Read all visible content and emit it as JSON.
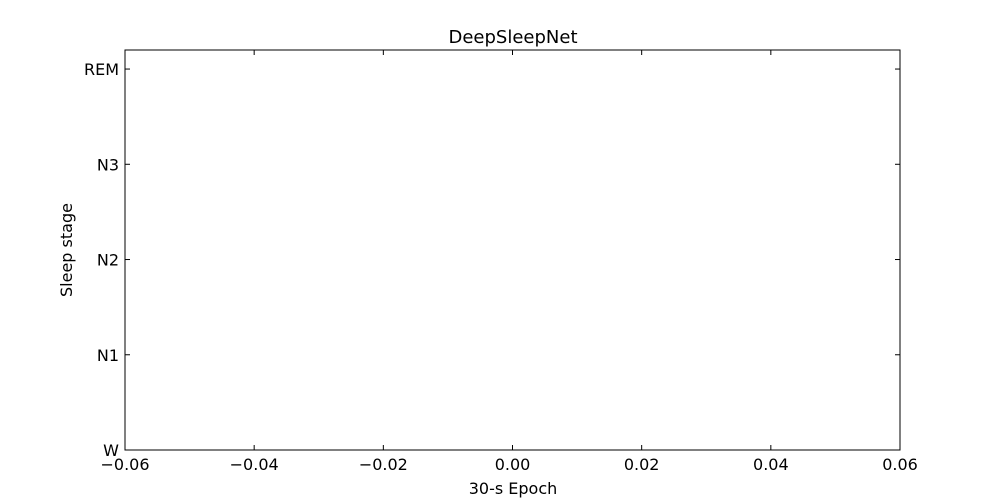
{
  "chart_data": {
    "type": "line",
    "title": "DeepSleepNet",
    "xlabel": "30-s Epoch",
    "ylabel": "Sleep stage",
    "xlim": [
      -0.06,
      0.06
    ],
    "x_ticks": [
      -0.06,
      -0.04,
      -0.02,
      0.0,
      0.02,
      0.04,
      0.06
    ],
    "x_tick_labels": [
      "−0.06",
      "−0.04",
      "−0.02",
      "0.00",
      "0.02",
      "0.04",
      "0.06"
    ],
    "y_categories": [
      "W",
      "N1",
      "N2",
      "N3",
      "REM"
    ],
    "ylim": [
      0,
      4.2
    ],
    "grid": false,
    "series": [
      {
        "x": [],
        "y": []
      }
    ]
  }
}
